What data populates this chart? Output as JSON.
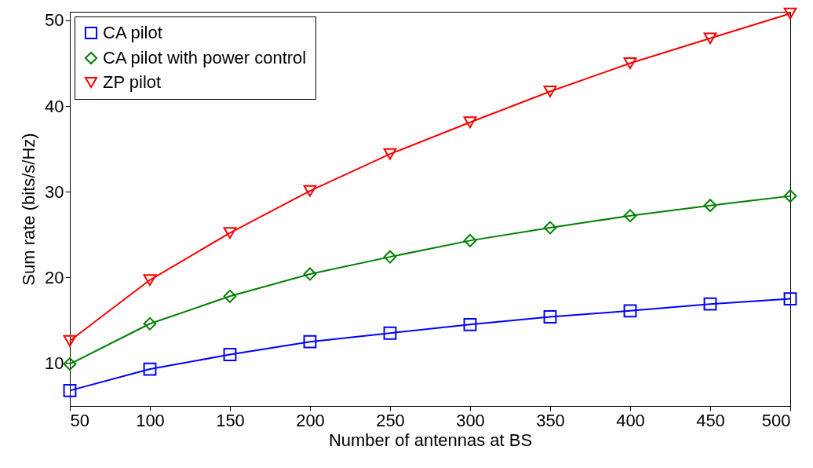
{
  "chart_data": {
    "type": "line",
    "xlabel": "Number of antennas at BS",
    "ylabel": "Sum rate (bits/s/Hz)",
    "x": [
      50,
      100,
      150,
      200,
      250,
      300,
      350,
      400,
      450,
      500
    ],
    "xlim": [
      50,
      500
    ],
    "xticks": [
      50,
      100,
      150,
      200,
      250,
      300,
      350,
      400,
      450,
      500
    ],
    "ylim": [
      5,
      51
    ],
    "yticks": [
      10,
      20,
      30,
      40,
      50
    ],
    "grid": false,
    "legend": "top left",
    "line_style": "solid",
    "series": [
      {
        "name": "CA pilot",
        "color": "#0000ff",
        "marker": "square",
        "values": [
          6.8,
          9.3,
          11.0,
          12.5,
          13.5,
          14.5,
          15.4,
          16.1,
          16.9,
          17.5
        ]
      },
      {
        "name": "CA pilot with power control",
        "color": "#008000",
        "marker": "diamond",
        "values": [
          9.9,
          14.6,
          17.8,
          20.4,
          22.4,
          24.3,
          25.8,
          27.2,
          28.4,
          29.5
        ]
      },
      {
        "name": "ZP pilot",
        "color": "#ff0000",
        "marker": "triangle",
        "values": [
          12.6,
          19.7,
          25.2,
          30.1,
          34.4,
          38.1,
          41.7,
          45.0,
          47.9,
          50.8
        ]
      }
    ]
  }
}
